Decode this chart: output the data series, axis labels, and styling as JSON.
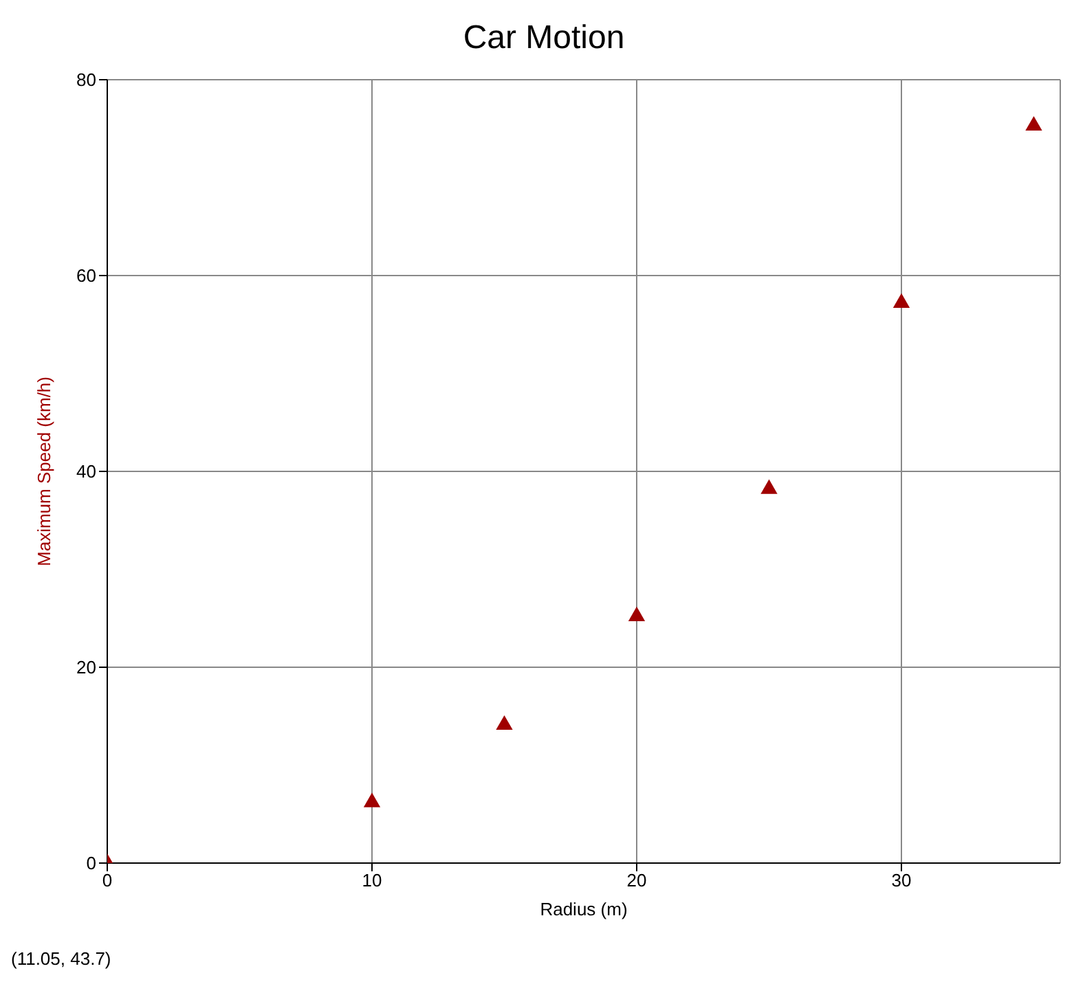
{
  "chart_data": {
    "type": "scatter",
    "title": "Car Motion",
    "xlabel": "Radius (m)",
    "ylabel": "Maximum Speed (km/h)",
    "x": [
      0,
      10,
      15,
      20,
      25,
      30,
      35
    ],
    "series": [
      {
        "color": "#a00000",
        "values": [
          0,
          6.2,
          14.1,
          25.2,
          38.2,
          57.2,
          75.3
        ]
      }
    ],
    "xlim": [
      0,
      36
    ],
    "xticks": [
      0,
      10,
      20,
      30
    ],
    "ylim": [
      0,
      80
    ],
    "yticks": [
      0,
      20,
      40,
      60,
      80
    ],
    "grid": true,
    "marker": "triangle",
    "annotations": [
      "(11.05, 43.7)"
    ]
  }
}
